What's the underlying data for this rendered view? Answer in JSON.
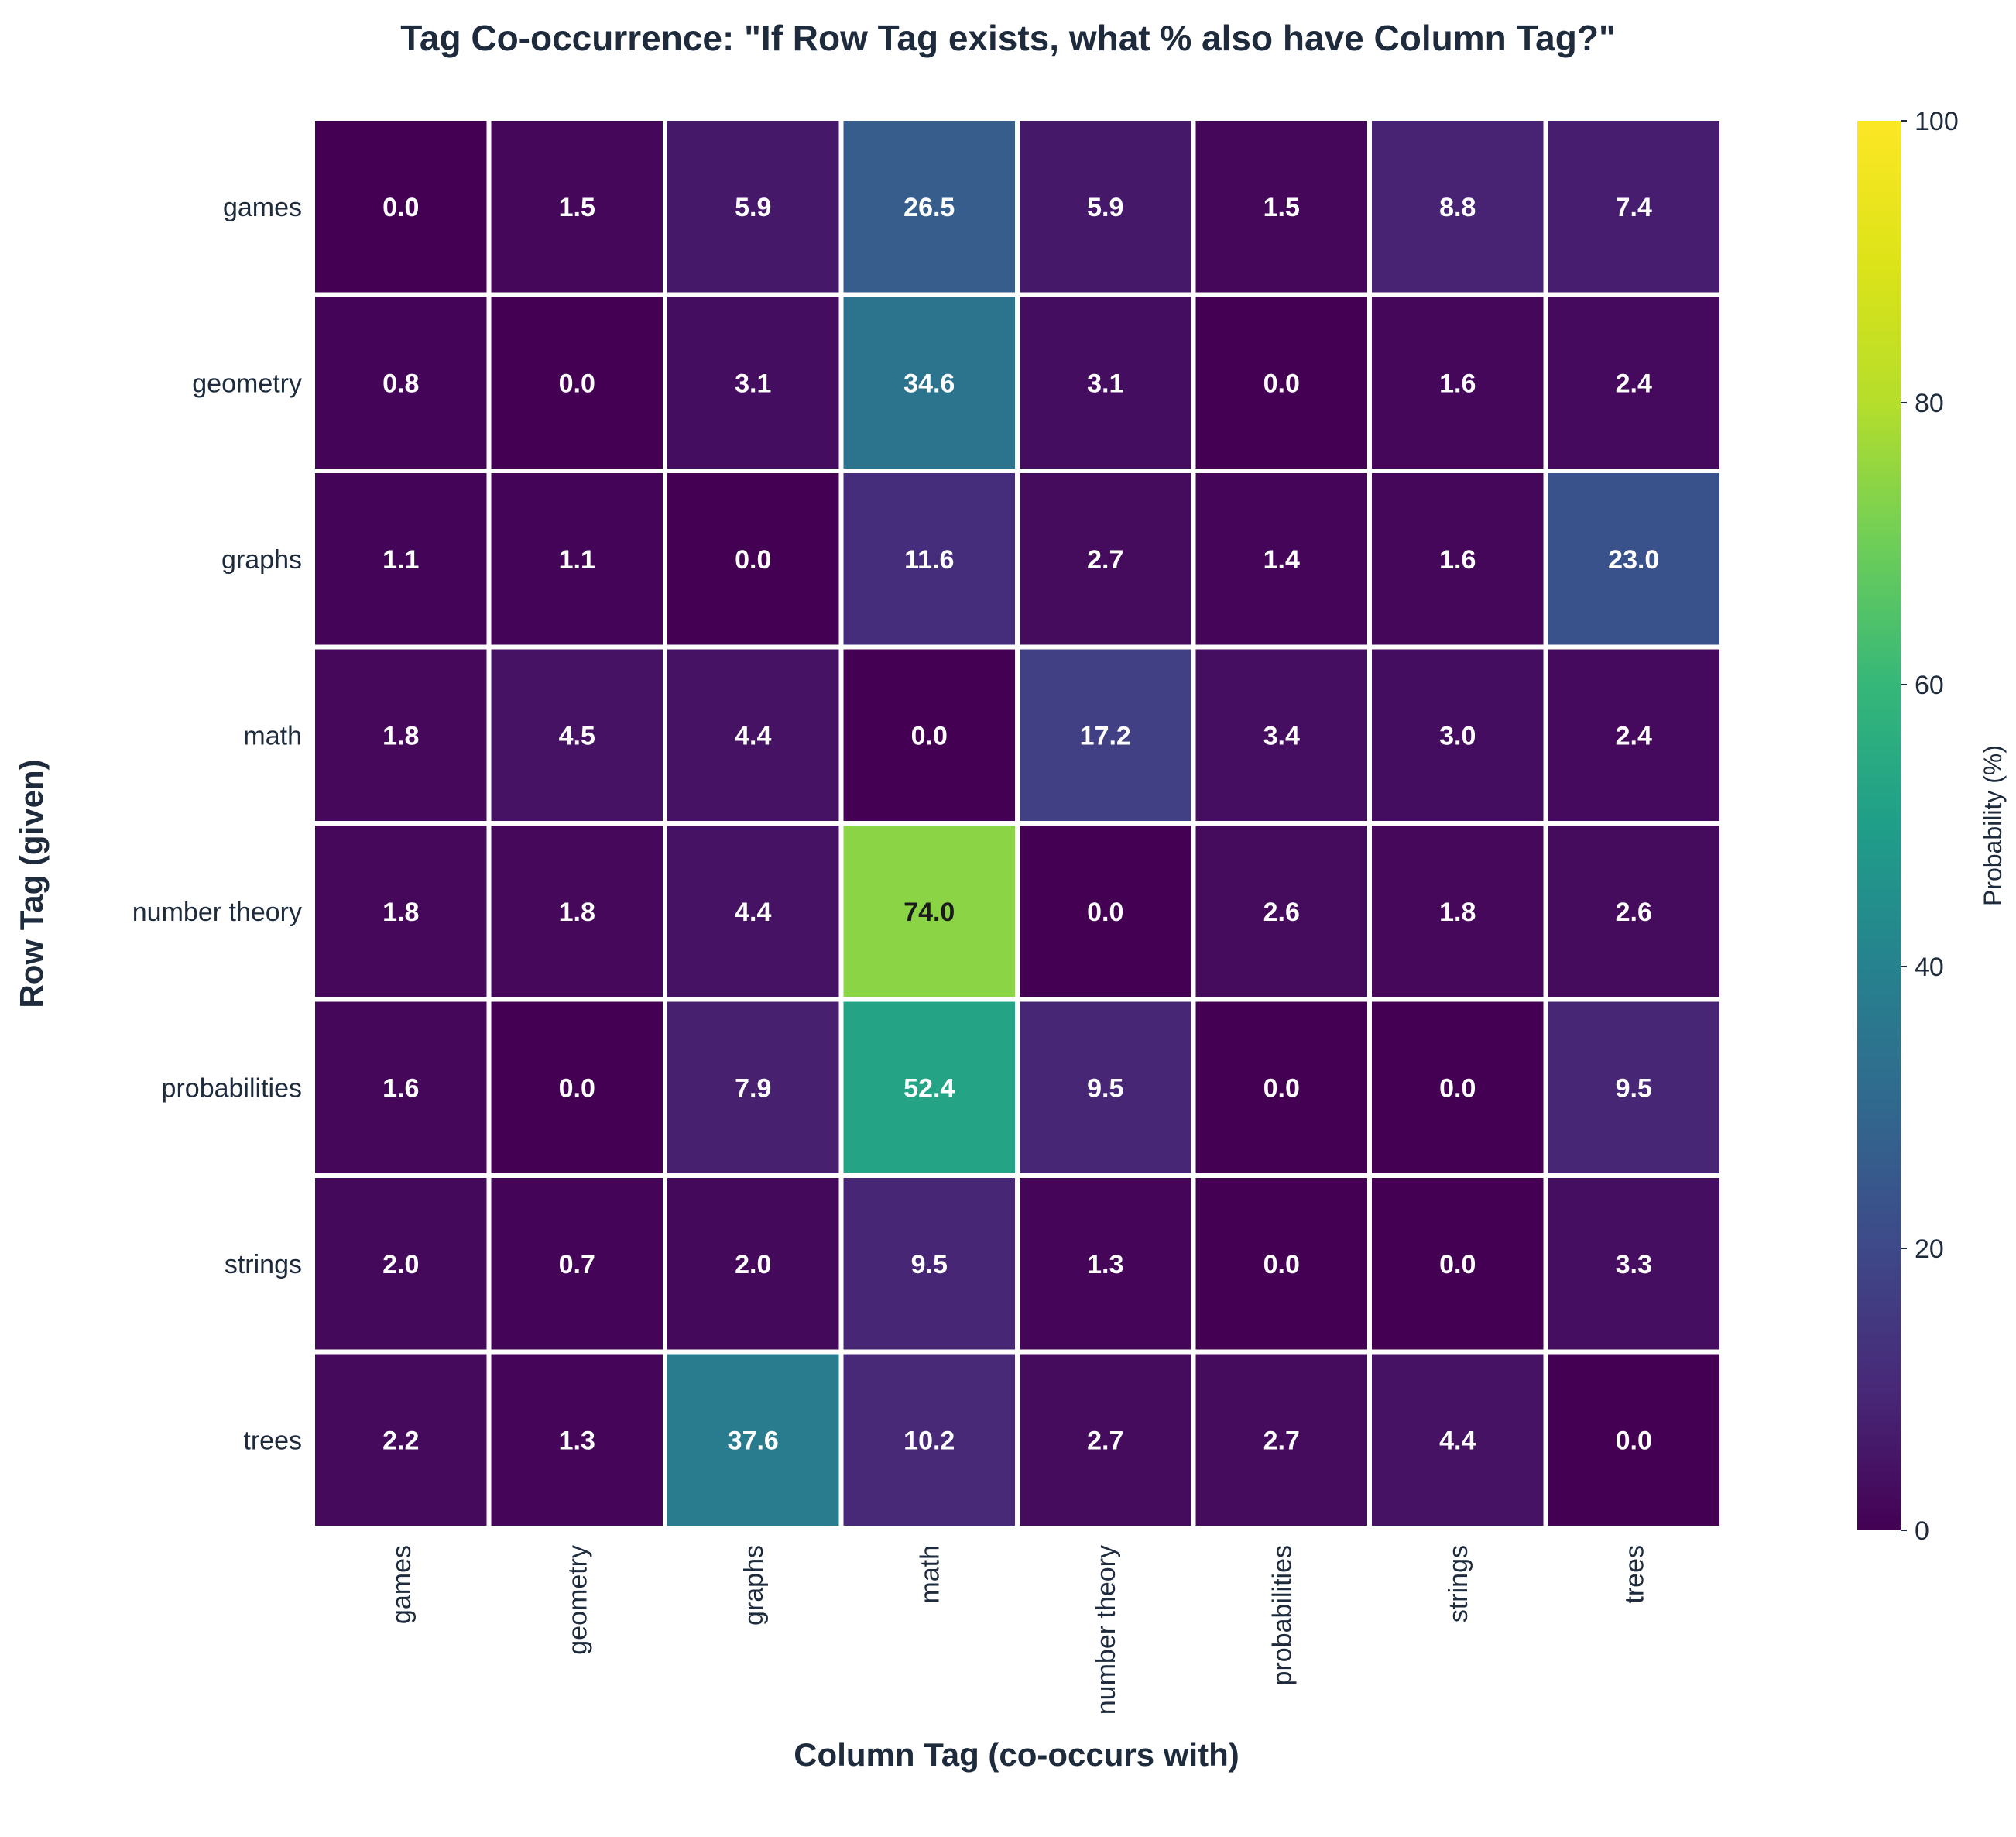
{
  "chart_data": {
    "type": "heatmap",
    "title": "Tag Co-occurrence: \"If Row Tag exists, what % also have Column Tag?\"",
    "xlabel": "Column Tag (co-occurs with)",
    "ylabel": "Row Tag (given)",
    "rows": [
      "games",
      "geometry",
      "graphs",
      "math",
      "number theory",
      "probabilities",
      "strings",
      "trees"
    ],
    "columns": [
      "games",
      "geometry",
      "graphs",
      "math",
      "number theory",
      "probabilities",
      "strings",
      "trees"
    ],
    "values": [
      [
        0.0,
        1.5,
        5.9,
        26.5,
        5.9,
        1.5,
        8.8,
        7.4
      ],
      [
        0.8,
        0.0,
        3.1,
        34.6,
        3.1,
        0.0,
        1.6,
        2.4
      ],
      [
        1.1,
        1.1,
        0.0,
        11.6,
        2.7,
        1.4,
        1.6,
        23.0
      ],
      [
        1.8,
        4.5,
        4.4,
        0.0,
        17.2,
        3.4,
        3.0,
        2.4
      ],
      [
        1.8,
        1.8,
        4.4,
        74.0,
        0.0,
        2.6,
        1.8,
        2.6
      ],
      [
        1.6,
        0.0,
        7.9,
        52.4,
        9.5,
        0.0,
        0.0,
        9.5
      ],
      [
        2.0,
        0.7,
        2.0,
        9.5,
        1.3,
        0.0,
        0.0,
        3.3
      ],
      [
        2.2,
        1.3,
        37.6,
        10.2,
        2.7,
        2.7,
        4.4,
        0.0
      ]
    ],
    "colorbar": {
      "label": "Probability (%)",
      "range": [
        0,
        100
      ],
      "ticks": [
        "0",
        "20",
        "40",
        "60",
        "80",
        "100"
      ],
      "colormap": "viridis"
    },
    "grid": false
  }
}
